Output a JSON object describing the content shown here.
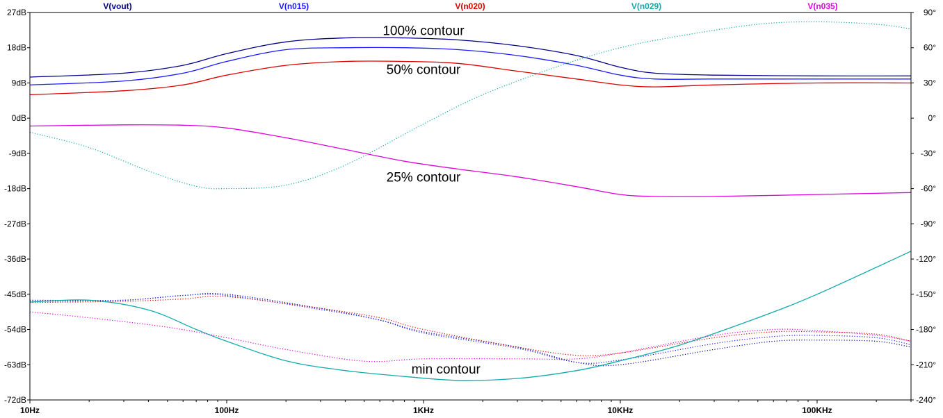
{
  "chart_data": {
    "type": "line",
    "title": "",
    "xlabel": "",
    "ylabel": "",
    "x_scale": "log",
    "xlim": [
      10,
      300000
    ],
    "ylim": [
      -72,
      27
    ],
    "y2lim": [
      -240,
      90
    ],
    "grid": false,
    "x_tick_values": [
      10,
      100,
      1000,
      10000,
      100000
    ],
    "x_tick_labels": [
      "10Hz",
      "100Hz",
      "1KHz",
      "10KHz",
      "100KHz"
    ],
    "y_tick_values": [
      27,
      18,
      9,
      0,
      -9,
      -18,
      -27,
      -36,
      -45,
      -54,
      -63,
      -72
    ],
    "y_tick_labels": [
      "27dB",
      "18dB",
      "9dB",
      "0dB",
      "-9dB",
      "-18dB",
      "-27dB",
      "-36dB",
      "-45dB",
      "-54dB",
      "-63dB",
      "-72dB"
    ],
    "y2_tick_values": [
      90,
      60,
      30,
      0,
      -30,
      -60,
      -90,
      -120,
      -150,
      -180,
      -210,
      -240
    ],
    "y2_tick_labels": [
      "90°",
      "60°",
      "30°",
      "0°",
      "-30°",
      "-60°",
      "-90°",
      "-120°",
      "-150°",
      "-180°",
      "-210°",
      "-240°"
    ],
    "legend_placement": "top",
    "series": [
      {
        "name": "V(vout)",
        "color": "#00008b",
        "magnitude_db": {
          "x": [
            10,
            30,
            60,
            100,
            200,
            400,
            800,
            1500,
            3000,
            6000,
            10000,
            15000,
            30000,
            100000,
            300000
          ],
          "y": [
            10.5,
            11.5,
            13.5,
            16.5,
            19.5,
            20.5,
            20.5,
            20,
            18.5,
            16,
            13,
            11.5,
            11,
            10.8,
            10.8
          ]
        },
        "phase_deg": {
          "x": [
            10,
            30,
            60,
            100,
            300,
            600,
            1000,
            3000,
            6000,
            10000,
            30000,
            60000,
            100000,
            200000,
            300000
          ],
          "y": [
            -155,
            -155,
            -151,
            -150,
            -162,
            -172,
            -182,
            -195,
            -208,
            -210,
            -197,
            -190,
            -189,
            -190,
            -195
          ]
        }
      },
      {
        "name": "V(n015)",
        "color": "#1a1aff",
        "magnitude_db": {
          "x": [
            10,
            30,
            60,
            100,
            200,
            400,
            800,
            1500,
            3000,
            6000,
            10000,
            15000,
            30000,
            100000,
            300000
          ],
          "y": [
            8.5,
            9.5,
            11.5,
            14.5,
            17.5,
            18,
            18,
            17.5,
            16,
            13.5,
            11,
            10,
            10,
            10,
            10
          ]
        },
        "phase_deg": {
          "x": [
            10,
            30,
            60,
            100,
            300,
            600,
            1000,
            3000,
            6000,
            10000,
            30000,
            60000,
            100000,
            200000,
            300000
          ],
          "y": [
            -156,
            -155,
            -151,
            -151,
            -163,
            -172,
            -183,
            -196,
            -208,
            -206,
            -192,
            -186,
            -185,
            -187,
            -193
          ]
        }
      },
      {
        "name": "V(n020)",
        "color": "#dd0000",
        "magnitude_db": {
          "x": [
            10,
            30,
            60,
            100,
            200,
            400,
            800,
            1500,
            3000,
            6000,
            10000,
            15000,
            30000,
            100000,
            300000
          ],
          "y": [
            6,
            7,
            8.5,
            11,
            13.5,
            14.5,
            14.5,
            14,
            12,
            10,
            8.5,
            8,
            8.5,
            9,
            9
          ]
        },
        "phase_deg": {
          "x": [
            10,
            30,
            60,
            100,
            300,
            600,
            1000,
            3000,
            6000,
            10000,
            30000,
            60000,
            100000,
            200000,
            300000
          ],
          "y": [
            -157,
            -156,
            -154,
            -152,
            -162,
            -170,
            -180,
            -195,
            -202,
            -200,
            -187,
            -182,
            -182,
            -184,
            -190
          ]
        }
      },
      {
        "name": "V(n029)",
        "color": "#11aaaa",
        "magnitude_db": {
          "x": [
            10,
            20,
            40,
            70,
            100,
            200,
            400,
            800,
            1500,
            3000,
            6000,
            10000,
            20000,
            50000,
            100000,
            300000
          ],
          "y": [
            -47,
            -46.5,
            -49,
            -54,
            -57,
            -62,
            -64.5,
            -66,
            -67,
            -66.5,
            -64.5,
            -62,
            -58,
            -51,
            -45,
            -34
          ]
        },
        "phase_deg": {
          "x": [
            10,
            20,
            40,
            70,
            100,
            200,
            400,
            1000,
            2000,
            5000,
            10000,
            20000,
            50000,
            100000,
            200000,
            300000
          ],
          "y": [
            -12,
            -25,
            -45,
            -58,
            -60,
            -57,
            -40,
            -5,
            20,
            45,
            60,
            70,
            80,
            82,
            80,
            76
          ]
        }
      },
      {
        "name": "V(n035)",
        "color": "#dd00dd",
        "magnitude_db": {
          "x": [
            10,
            30,
            60,
            100,
            200,
            400,
            800,
            1500,
            3000,
            6000,
            10000,
            15000,
            30000,
            100000,
            300000
          ],
          "y": [
            -2,
            -1.7,
            -1.8,
            -2.5,
            -5,
            -8,
            -11,
            -13,
            -15,
            -17.5,
            -19.5,
            -20,
            -20,
            -19.5,
            -19
          ]
        },
        "phase_deg": {
          "x": [
            10,
            20,
            50,
            100,
            200,
            500,
            1000,
            3000,
            6000,
            10000,
            30000,
            60000,
            100000,
            200000,
            300000
          ],
          "y": [
            -165,
            -170,
            -178,
            -187,
            -197,
            -207,
            -205,
            -205,
            -205,
            -200,
            -185,
            -180,
            -181,
            -185,
            -190
          ]
        }
      }
    ],
    "annotations": [
      {
        "text": "100% contour",
        "x": 1000,
        "y": 22.5
      },
      {
        "text": "50% contour",
        "x": 1000,
        "y": 12.5
      },
      {
        "text": "25% contour",
        "x": 1000,
        "y": -15
      },
      {
        "text": "min contour",
        "x": 1300,
        "y": -64
      }
    ]
  }
}
